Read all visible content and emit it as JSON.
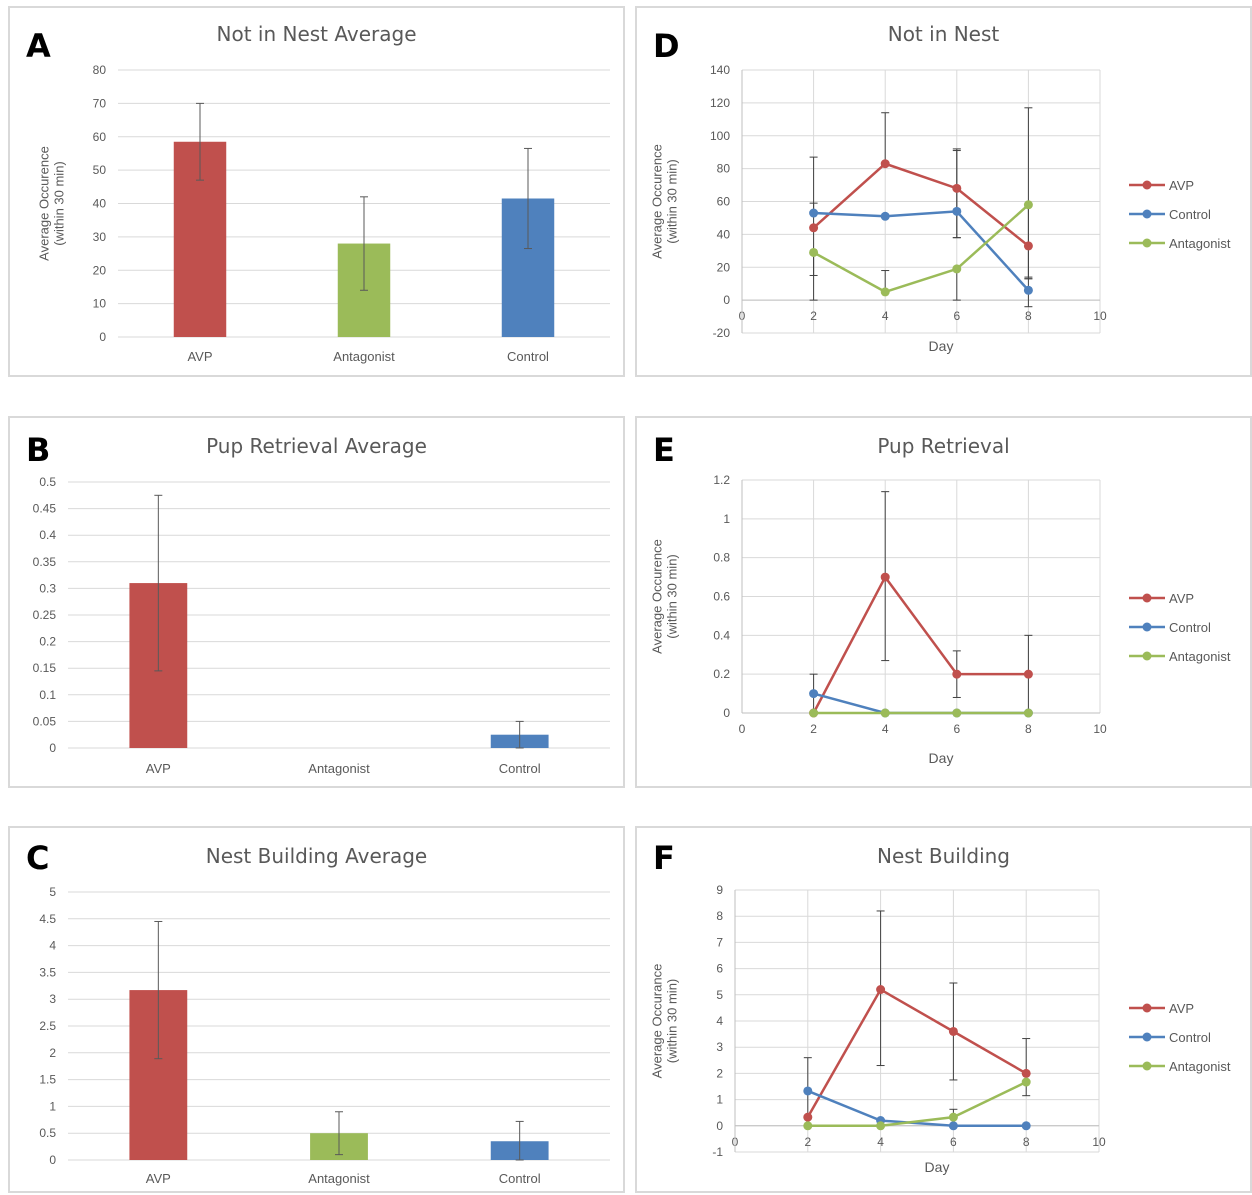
{
  "colors": {
    "AVP": "#c0504d",
    "Antagonist": "#9bbb59",
    "Control": "#4f81bd"
  },
  "chart_data": [
    {
      "id": "A",
      "type": "bar",
      "title": "Not in Nest Average",
      "ylabel_lines": [
        "Average Occurence",
        "(within 30 min)"
      ],
      "categories": [
        "AVP",
        "Antagonist",
        "Control"
      ],
      "values": [
        58.5,
        28,
        41.5
      ],
      "error": [
        11.5,
        14,
        15
      ],
      "ylim": [
        0,
        80
      ],
      "yticks": [
        0,
        10,
        20,
        30,
        40,
        50,
        60,
        70,
        80
      ],
      "ytick_labels": [
        "0",
        "10",
        "20",
        "30",
        "40",
        "50",
        "60",
        "70",
        "80"
      ],
      "grid": true
    },
    {
      "id": "B",
      "type": "bar",
      "title": "Pup Retrieval Average",
      "ylabel_lines": [],
      "categories": [
        "AVP",
        "Antagonist",
        "Control"
      ],
      "values": [
        0.31,
        0,
        0.025
      ],
      "error": [
        0.165,
        0,
        0.025
      ],
      "ylim": [
        0,
        0.5
      ],
      "yticks": [
        0,
        0.05,
        0.1,
        0.15,
        0.2,
        0.25,
        0.3,
        0.35,
        0.4,
        0.45,
        0.5
      ],
      "ytick_labels": [
        "0",
        "0.05",
        "0.1",
        "0.15",
        "0.2",
        "0.25",
        "0.3",
        "0.35",
        "0.4",
        "0.45",
        "0.5"
      ],
      "grid": true
    },
    {
      "id": "C",
      "type": "bar",
      "title": "Nest Building Average",
      "ylabel_lines": [],
      "categories": [
        "AVP",
        "Antagonist",
        "Control"
      ],
      "values": [
        3.17,
        0.5,
        0.35
      ],
      "error": [
        1.28,
        0.4,
        0.37
      ],
      "ylim": [
        0,
        5
      ],
      "yticks": [
        0,
        0.5,
        1,
        1.5,
        2,
        2.5,
        3,
        3.5,
        4,
        4.5,
        5
      ],
      "ytick_labels": [
        "0",
        "0.5",
        "1",
        "1.5",
        "2",
        "2.5",
        "3",
        "3.5",
        "4",
        "4.5",
        "5"
      ],
      "grid": true
    },
    {
      "id": "D",
      "type": "line",
      "title": "Not in Nest",
      "xlabel": "Day",
      "ylabel_lines": [
        "Average Occurence",
        "(within 30 min)"
      ],
      "xlim": [
        0,
        10
      ],
      "xticks": [
        0,
        2,
        4,
        6,
        8,
        10
      ],
      "ylim": [
        -20,
        140
      ],
      "yticks": [
        -20,
        0,
        20,
        40,
        60,
        80,
        100,
        120,
        140
      ],
      "ytick_labels": [
        "-20",
        "0",
        "20",
        "40",
        "60",
        "80",
        "100",
        "120",
        "140"
      ],
      "grid": true,
      "legend": "right",
      "series": [
        {
          "name": "AVP",
          "x": [
            2,
            4,
            6,
            8
          ],
          "y": [
            44,
            83,
            68,
            33
          ],
          "err_low": [
            29,
            0,
            30,
            20
          ],
          "err_high": [
            43,
            31,
            24,
            84
          ]
        },
        {
          "name": "Control",
          "x": [
            2,
            4,
            6,
            8
          ],
          "y": [
            53,
            51,
            54,
            6
          ],
          "err_low": [
            0,
            0,
            16,
            10
          ],
          "err_high": [
            6,
            0,
            37,
            7
          ]
        },
        {
          "name": "Antagonist",
          "x": [
            2,
            4,
            6,
            8
          ],
          "y": [
            29,
            5,
            19,
            58
          ],
          "err_low": [
            29,
            0,
            19,
            44
          ],
          "err_high": [
            0,
            13,
            0,
            0
          ]
        }
      ]
    },
    {
      "id": "E",
      "type": "line",
      "title": "Pup Retrieval",
      "xlabel": "Day",
      "ylabel_lines": [
        "Average Occurence",
        "(within 30 min)"
      ],
      "xlim": [
        0,
        10
      ],
      "xticks": [
        0,
        2,
        4,
        6,
        8,
        10
      ],
      "ylim": [
        0,
        1.2
      ],
      "yticks": [
        0,
        0.2,
        0.4,
        0.6,
        0.8,
        1,
        1.2
      ],
      "ytick_labels": [
        "0",
        "0.2",
        "0.4",
        "0.6",
        "0.8",
        "1",
        "1.2"
      ],
      "grid": true,
      "legend": "right",
      "series": [
        {
          "name": "AVP",
          "x": [
            2,
            4,
            6,
            8
          ],
          "y": [
            0,
            0.7,
            0.2,
            0.2
          ],
          "err_low": [
            0,
            0.43,
            0.12,
            0.2
          ],
          "err_high": [
            0,
            0.44,
            0.12,
            0.2
          ]
        },
        {
          "name": "Control",
          "x": [
            2,
            4,
            6,
            8
          ],
          "y": [
            0.1,
            0,
            0,
            0
          ],
          "err_low": [
            0.1,
            0,
            0,
            0
          ],
          "err_high": [
            0.1,
            0,
            0,
            0
          ]
        },
        {
          "name": "Antagonist",
          "x": [
            2,
            4,
            6,
            8
          ],
          "y": [
            0,
            0,
            0,
            0
          ],
          "err_low": [
            0,
            0,
            0,
            0
          ],
          "err_high": [
            0,
            0,
            0,
            0
          ]
        }
      ]
    },
    {
      "id": "F",
      "type": "line",
      "title": "Nest Building",
      "xlabel": "Day",
      "ylabel_lines": [
        "Average Occurance",
        "(within 30 min)"
      ],
      "xlim": [
        0,
        10
      ],
      "xticks": [
        0,
        2,
        4,
        6,
        8,
        10
      ],
      "ylim": [
        -1,
        9
      ],
      "yticks": [
        -1,
        0,
        1,
        2,
        3,
        4,
        5,
        6,
        7,
        8,
        9
      ],
      "ytick_labels": [
        "-1",
        "0",
        "1",
        "2",
        "3",
        "4",
        "5",
        "6",
        "7",
        "8",
        "9"
      ],
      "grid": true,
      "legend": "right",
      "series": [
        {
          "name": "AVP",
          "x": [
            2,
            4,
            6,
            8
          ],
          "y": [
            0.33,
            5.2,
            3.6,
            2
          ],
          "err_low": [
            0,
            2.9,
            1.85,
            0.85
          ],
          "err_high": [
            0,
            3,
            1.85,
            1.33
          ]
        },
        {
          "name": "Control",
          "x": [
            2,
            4,
            6,
            8
          ],
          "y": [
            1.33,
            0.2,
            0,
            0
          ],
          "err_low": [
            1.33,
            0,
            0,
            0
          ],
          "err_high": [
            1.27,
            0,
            0,
            0
          ]
        },
        {
          "name": "Antagonist",
          "x": [
            2,
            4,
            6,
            8
          ],
          "y": [
            0,
            0,
            0.33,
            1.67
          ],
          "err_low": [
            0,
            0,
            0,
            0
          ],
          "err_high": [
            0,
            0,
            0.3,
            0
          ]
        }
      ]
    }
  ]
}
